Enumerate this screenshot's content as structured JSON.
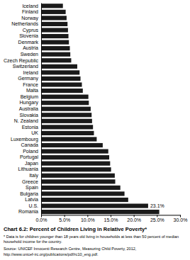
{
  "chart_data": {
    "type": "bar",
    "orientation": "horizontal",
    "title": "Chart 6.2: Percent of Children Living in Relative Poverty*",
    "footnotes": [
      "* Data is for children younger than 18 years old living in households at less than 50 percent of median household income for the country.",
      "Source: UNICEF Innocenti Research Centre, Measuring Child Poverty, 2012, http://www.unicef-irc.org/publications/pdf/rc10_eng.pdf."
    ],
    "categories": [
      "Iceland",
      "Finland",
      "Norway",
      "Netherlands",
      "Cyprus",
      "Slovenia",
      "Denmark",
      "Austria",
      "Sweden",
      "Czech Republic",
      "Switzerland",
      "Ireland",
      "Germany",
      "France",
      "Malta",
      "Belgium",
      "Hungary",
      "Australia",
      "Slovakia",
      "N. Zealand",
      "Estonia",
      "UK",
      "Luxembourg",
      "Canada",
      "Poland",
      "Portugal",
      "Japan",
      "Lithuania",
      "Italy",
      "Greece",
      "Spain",
      "Bulgaria",
      "Latvia",
      "U.S.",
      "Romania"
    ],
    "values": [
      4.7,
      5.3,
      5.5,
      5.7,
      5.8,
      5.9,
      6.0,
      6.2,
      6.3,
      6.5,
      7.8,
      8.3,
      8.5,
      8.8,
      9.0,
      10.2,
      10.3,
      10.7,
      10.9,
      11.0,
      11.2,
      11.4,
      12.0,
      13.3,
      14.5,
      14.7,
      14.9,
      15.1,
      15.9,
      16.0,
      17.1,
      18.0,
      18.8,
      23.1,
      25.5
    ],
    "color": "#1a1a1a",
    "xlim": [
      0,
      30
    ],
    "xticks": [
      {
        "value": 0,
        "label": "0.0%"
      },
      {
        "value": 5,
        "label": "5.0%"
      },
      {
        "value": 10,
        "label": "10.0%"
      },
      {
        "value": 15,
        "label": "15.0%"
      },
      {
        "value": 20,
        "label": "20.0%"
      },
      {
        "value": 25,
        "label": "25.0%"
      },
      {
        "value": 30,
        "label": "30.0%"
      }
    ],
    "annotations": [
      {
        "category": "U.S.",
        "value": 23.1,
        "label": "23.1%"
      }
    ],
    "grid": false
  }
}
